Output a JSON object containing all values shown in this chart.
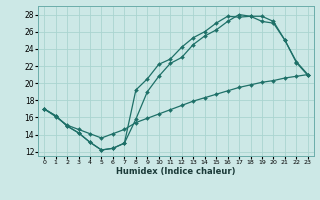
{
  "xlabel": "Humidex (Indice chaleur)",
  "bg_color": "#cce8e6",
  "grid_color": "#aad4d0",
  "line_color": "#1e7068",
  "xlim": [
    -0.5,
    23.5
  ],
  "ylim": [
    11.5,
    29.0
  ],
  "xticks": [
    0,
    1,
    2,
    3,
    4,
    5,
    6,
    7,
    8,
    9,
    10,
    11,
    12,
    13,
    14,
    15,
    16,
    17,
    18,
    19,
    20,
    21,
    22,
    23
  ],
  "yticks": [
    12,
    14,
    16,
    18,
    20,
    22,
    24,
    26,
    28
  ],
  "line1_x": [
    0,
    1,
    2,
    3,
    4,
    5,
    6,
    7,
    8,
    9,
    10,
    11,
    12,
    13,
    14,
    15,
    16,
    17,
    18,
    19,
    20,
    21,
    22,
    23
  ],
  "line1_y": [
    17.0,
    16.2,
    15.0,
    14.2,
    13.1,
    12.2,
    12.4,
    13.0,
    15.8,
    19.0,
    20.8,
    22.3,
    23.0,
    24.5,
    25.5,
    26.2,
    27.2,
    28.0,
    27.8,
    27.8,
    27.2,
    25.0,
    22.5,
    21.0
  ],
  "line2_x": [
    0,
    1,
    2,
    3,
    4,
    5,
    6,
    7,
    8,
    9,
    10,
    11,
    12,
    13,
    14,
    15,
    16,
    17,
    18,
    19,
    20,
    21,
    22,
    23
  ],
  "line2_y": [
    17.0,
    16.2,
    15.0,
    14.2,
    13.1,
    12.2,
    12.4,
    13.0,
    19.2,
    20.5,
    22.2,
    22.8,
    24.2,
    25.3,
    26.0,
    27.0,
    27.8,
    27.7,
    27.8,
    27.2,
    27.0,
    25.0,
    22.4,
    20.9
  ],
  "line3_x": [
    0,
    1,
    2,
    3,
    4,
    5,
    6,
    7,
    8,
    9,
    10,
    11,
    12,
    13,
    14,
    15,
    16,
    17,
    18,
    19,
    20,
    21,
    22,
    23
  ],
  "line3_y": [
    17.0,
    16.1,
    15.1,
    14.6,
    14.1,
    13.6,
    14.1,
    14.6,
    15.4,
    15.9,
    16.4,
    16.9,
    17.4,
    17.9,
    18.3,
    18.7,
    19.1,
    19.5,
    19.8,
    20.1,
    20.3,
    20.6,
    20.8,
    21.0
  ]
}
